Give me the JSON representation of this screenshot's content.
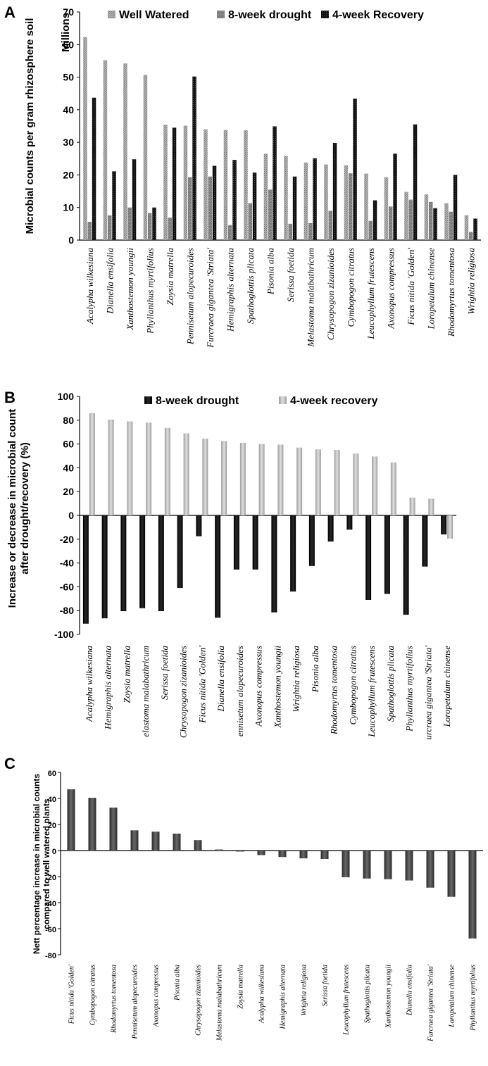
{
  "chart_data": [
    {
      "panel": "A",
      "type": "bar",
      "ylabel": "Microbial counts per gram rhizosphere soil",
      "yunit": "Millions",
      "ylim": [
        0,
        70
      ],
      "yticks": [
        0,
        10,
        20,
        30,
        40,
        50,
        60,
        70
      ],
      "legend_position": "top",
      "categories": [
        "Acalypha wilkesiana",
        "Dianella ensifolia",
        "Xanthostemon youngii",
        "Phyllanthus myrtifolius",
        "Zoysia matrella",
        "Pennisetum alopecuroides",
        "Furcraea gigantea 'Striata'",
        "Hemigraphis alternata",
        "Spathoglottis plicata",
        "Pisonia alba",
        "Serissa foetida",
        "Melastoma malabathricum",
        "Chrysopogon zizanioides",
        "Cymbopogon citratus",
        "Leucophyllum frutescens",
        "Axonopus compressus",
        "Ficus nitida 'Golden'",
        "Loropetalum chinense",
        "Rhodomyrtus tomentosa",
        "Wrightia religiosa"
      ],
      "series": [
        {
          "name": "Well Watered",
          "color": "#a0a0a0",
          "values": [
            62.3,
            55.2,
            54.2,
            50.7,
            35.4,
            35.1,
            34.0,
            33.8,
            33.7,
            26.5,
            25.8,
            23.8,
            23.2,
            23.0,
            20.4,
            19.3,
            14.8,
            14.0,
            11.3,
            7.6
          ]
        },
        {
          "name": "8-week drought",
          "color": "#7a7a7a",
          "values": [
            5.6,
            7.6,
            10.0,
            8.3,
            6.9,
            19.3,
            19.5,
            4.6,
            11.3,
            15.5,
            5.0,
            5.2,
            9.0,
            20.5,
            5.9,
            10.3,
            12.4,
            11.7,
            8.7,
            2.5
          ]
        },
        {
          "name": "4-week Recovery",
          "color": "#000000",
          "values": [
            43.7,
            21.1,
            24.8,
            10.0,
            34.5,
            50.2,
            22.8,
            24.6,
            20.7,
            34.9,
            19.5,
            25.1,
            29.8,
            43.4,
            12.2,
            26.5,
            35.5,
            9.8,
            20.0,
            6.6
          ]
        }
      ]
    },
    {
      "panel": "B",
      "type": "bar",
      "ylabel": "Increase or decrease in microbial count after drought/recovery (%)",
      "ylim": [
        -100,
        100
      ],
      "yticks": [
        -100,
        -80,
        -60,
        -40,
        -20,
        0,
        20,
        40,
        60,
        80,
        100
      ],
      "legend_position": "top",
      "categories": [
        "Acalypha wilkesiana",
        "Hemigraphis alternata",
        "Zoysia matrella",
        "Melastoma malabathricum",
        "Serissa foetida",
        "Chrysopogon zizanioides",
        "Ficus nitida 'Golden'",
        "Dianella ensifolia",
        "Pennisetum alopecuroides",
        "Axonopus compressus",
        "Xanthostemon youngii",
        "Wrightia religiosa",
        "Pisonia alba",
        "Rhodomyrtus tomentosa",
        "Cymbopogon citratus",
        "Leucophyllum frutescens",
        "Spathoglottis plicata",
        "Phyllanthus myrtifolius",
        "Furcraea gigantea 'Striata'",
        "Loropetalum chinense"
      ],
      "category_display": [
        "Acalypha wilkesiana",
        "Hemigraphis alternata",
        "Zoysia matrella",
        "elastoma malabathricum",
        "Serissa foetida",
        "Chrysopogon zizanioides",
        "Ficus nitida 'Golden'",
        "Dianella ensifolia",
        "ennisetum alopecuroides",
        "Axonopus compressus",
        "Xanthostemon youngii",
        "Wrightia religiosa",
        "Pisonia alba",
        "Rhodomyrtus tomentosa",
        "Cymbopogon citratus",
        "Leucophyllum frutescens",
        "Spathoglottis plicata",
        "Phyllanthus myrtifolius",
        "urcraea gigantea 'Striata'",
        "Loropetalum chinense"
      ],
      "series": [
        {
          "name": "8-week drought",
          "color": "#000000",
          "values": [
            -91,
            -86.5,
            -80.5,
            -78,
            -80.5,
            -61,
            -17.5,
            -86,
            -45.5,
            -45.5,
            -81.5,
            -64,
            -42.5,
            -22,
            -12,
            -71,
            -66,
            -83.5,
            -43,
            -16
          ]
        },
        {
          "name": "4-week recovery",
          "color": "#bdbdbd",
          "values": [
            86,
            80.5,
            79,
            78,
            73.5,
            69,
            64.5,
            62.5,
            61,
            60,
            59.5,
            57,
            55.5,
            55,
            52,
            49.5,
            44.5,
            15,
            14,
            -19.5
          ]
        }
      ]
    },
    {
      "panel": "C",
      "type": "bar",
      "ylabel": "Nett percentage increase in microbial counts compared to well watered plants",
      "ylim": [
        -80,
        60
      ],
      "yticks": [
        -80,
        -60,
        -40,
        -20,
        0,
        20,
        40,
        60
      ],
      "categories": [
        "Ficus nitida 'Golden'",
        "Cymbopogon citratus",
        "Rhodomyrtus tomentosa",
        "Pennisetum alopecuroides",
        "Axonopus compressus",
        "Pisonia alba",
        "Chrysopogon zizanioides",
        "Melastoma malabathricum",
        "Zoysia matrella",
        "Acalypha wilkesiana",
        "Hemigraphis alternata",
        "Wrightia religiosa",
        "Serissa foetida",
        "Leucophyllum frutescens",
        "Spathoglottis plicata",
        "Xanthostemon youngii",
        "Dianella ensifolia",
        "Furcraea gigantea 'Striata'",
        "Loropetalum chinense",
        "Phyllanthus myrtifolius"
      ],
      "series": [
        {
          "color": "#404040",
          "values": [
            47,
            40.5,
            33,
            15.5,
            14.5,
            13,
            8,
            0.8,
            -0.8,
            -3.5,
            -5,
            -6,
            -6.5,
            -20.5,
            -21.5,
            -22,
            -23,
            -28.5,
            -35.5,
            -67.5
          ]
        }
      ]
    }
  ]
}
